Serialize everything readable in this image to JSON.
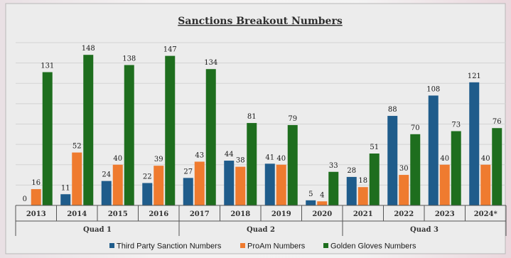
{
  "chart_data": {
    "type": "bar",
    "title": "Sanctions Breakout Numbers",
    "categories": [
      "2013",
      "2014",
      "2015",
      "2016",
      "2017",
      "2018",
      "2019",
      "2020",
      "2021",
      "2022",
      "2023",
      "2024*"
    ],
    "groups": [
      {
        "label": "Quad 1",
        "categories": [
          "2013",
          "2014",
          "2015",
          "2016"
        ]
      },
      {
        "label": "Quad 2",
        "categories": [
          "2017",
          "2018",
          "2019",
          "2020"
        ]
      },
      {
        "label": "Quad 3",
        "categories": [
          "2021",
          "2022",
          "2023",
          "2024*"
        ]
      }
    ],
    "series": [
      {
        "name": "Third Party Sanction Numbers",
        "color": "#1f5c8b",
        "values": [
          0,
          11,
          24,
          22,
          27,
          44,
          41,
          5,
          28,
          88,
          108,
          121
        ]
      },
      {
        "name": "ProAm Numbers",
        "color": "#ef7b2f",
        "values": [
          16,
          52,
          40,
          39,
          43,
          38,
          40,
          4,
          18,
          30,
          40,
          40
        ]
      },
      {
        "name": "Golden Gloves Numbers",
        "color": "#1e6e1e",
        "values": [
          131,
          148,
          138,
          147,
          134,
          81,
          79,
          33,
          51,
          70,
          73,
          76
        ]
      }
    ],
    "ylim": [
      0,
      160
    ],
    "grid": true,
    "legend_position": "bottom"
  }
}
